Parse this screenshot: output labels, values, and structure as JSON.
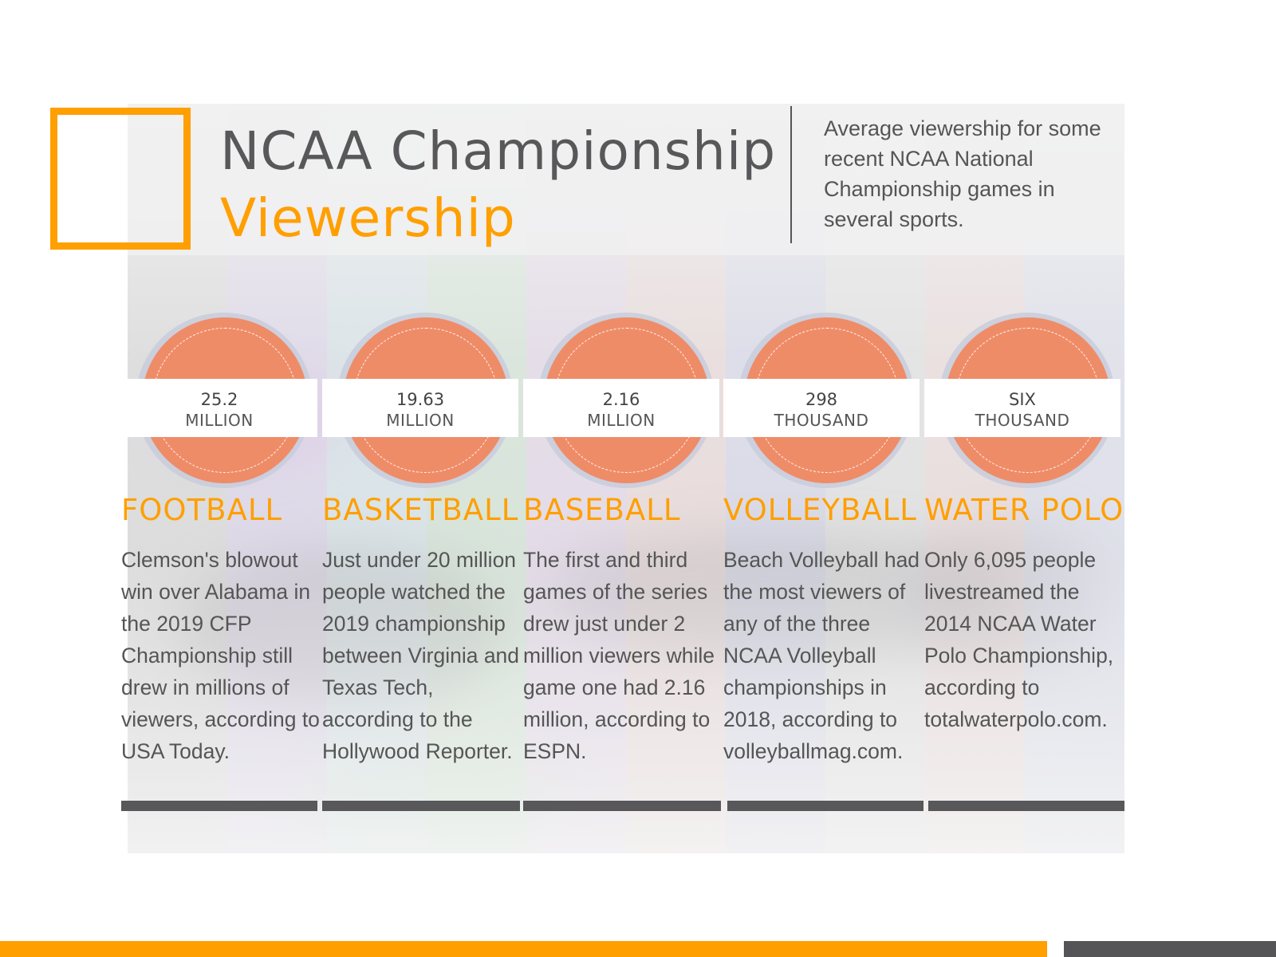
{
  "title": {
    "line1": "NCAA Championship",
    "line2": "Viewership"
  },
  "intro": "Average viewership for some recent NCAA National Championship games in several sports.",
  "colors": {
    "accent": "#ff9f00",
    "text": "#555555",
    "disc": "#ef8c68",
    "rule": "#58585a"
  },
  "items": [
    {
      "number": "25.2",
      "unit": "MILLION",
      "sport": "FOOTBALL",
      "description": "Clemson's blowout win over Alabama in the 2019 CFP Championship still drew in millions of viewers, according to USA Today."
    },
    {
      "number": "19.63",
      "unit": "MILLION",
      "sport": "BASKETBALL",
      "description": "Just under 20 million people watched the 2019 championship between Virginia and Texas Tech, according to the Hollywood Reporter."
    },
    {
      "number": "2.16",
      "unit": "MILLION",
      "sport": "BASEBALL",
      "description": "The first and third games of the series drew just under 2 million viewers while game one had 2.16 million, according to ESPN."
    },
    {
      "number": "298",
      "unit": "THOUSAND",
      "sport": "VOLLEYBALL",
      "description": "Beach Volleyball had the most viewers of any of the three NCAA Volleyball championships in 2018, according to volleyballmag.com."
    },
    {
      "number": "SIX",
      "unit": "THOUSAND",
      "sport": "WATER POLO",
      "description": "Only 6,095 people livestreamed the 2014 NCAA Water Polo Championship, according to totalwaterpolo.com."
    }
  ]
}
